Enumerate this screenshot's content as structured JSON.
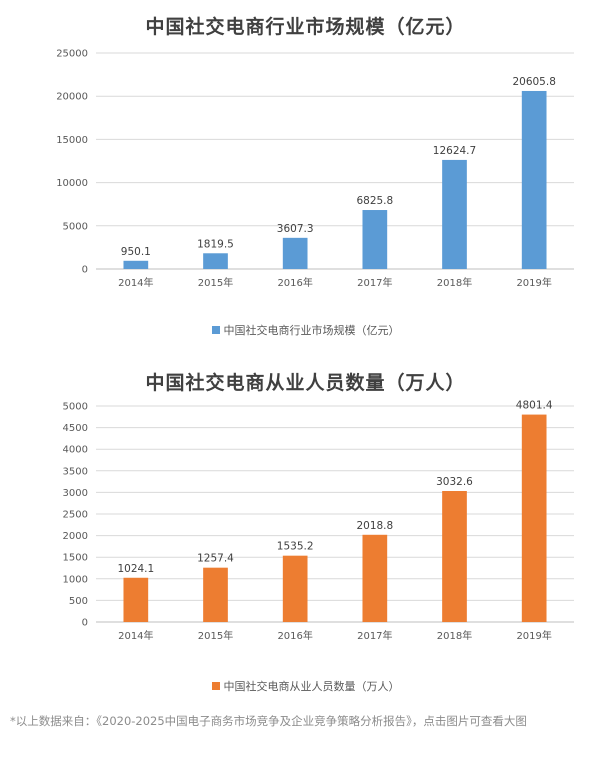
{
  "chart_data": [
    {
      "type": "bar",
      "title": "中国社交电商行业市场规模（亿元）",
      "categories": [
        "2014年",
        "2015年",
        "2016年",
        "2017年",
        "2018年",
        "2019年"
      ],
      "series": [
        {
          "name": "中国社交电商行业市场规模（亿元）",
          "values": [
            950.1,
            1819.5,
            3607.3,
            6825.8,
            12624.7,
            20605.8
          ],
          "color": "#5B9BD5"
        }
      ],
      "value_labels": [
        "950.1",
        "1819.5",
        "3607.3",
        "6825.8",
        "12624.7",
        "20605.8"
      ],
      "ylim": [
        0,
        25000
      ],
      "yticks": [
        0,
        5000,
        10000,
        15000,
        20000,
        25000
      ],
      "grid": true,
      "legend": "bottom"
    },
    {
      "type": "bar",
      "title": "中国社交电商从业人员数量（万人）",
      "categories": [
        "2014年",
        "2015年",
        "2016年",
        "2017年",
        "2018年",
        "2019年"
      ],
      "series": [
        {
          "name": "中国社交电商从业人员数量（万人）",
          "values": [
            1024.1,
            1257.4,
            1535.2,
            2018.8,
            3032.6,
            4801.4
          ],
          "color": "#ED7D31"
        }
      ],
      "value_labels": [
        "1024.1",
        "1257.4",
        "1535.2",
        "2018.8",
        "3032.6",
        "4801.4"
      ],
      "ylim": [
        0,
        5000
      ],
      "yticks": [
        0,
        500,
        1000,
        1500,
        2000,
        2500,
        3000,
        3500,
        4000,
        4500,
        5000
      ],
      "grid": true,
      "legend": "bottom"
    }
  ],
  "footnote": "*以上数据来自：《2020-2025中国电子商务市场竞争及企业竞争策略分析报告》，点击图片可查看大图"
}
